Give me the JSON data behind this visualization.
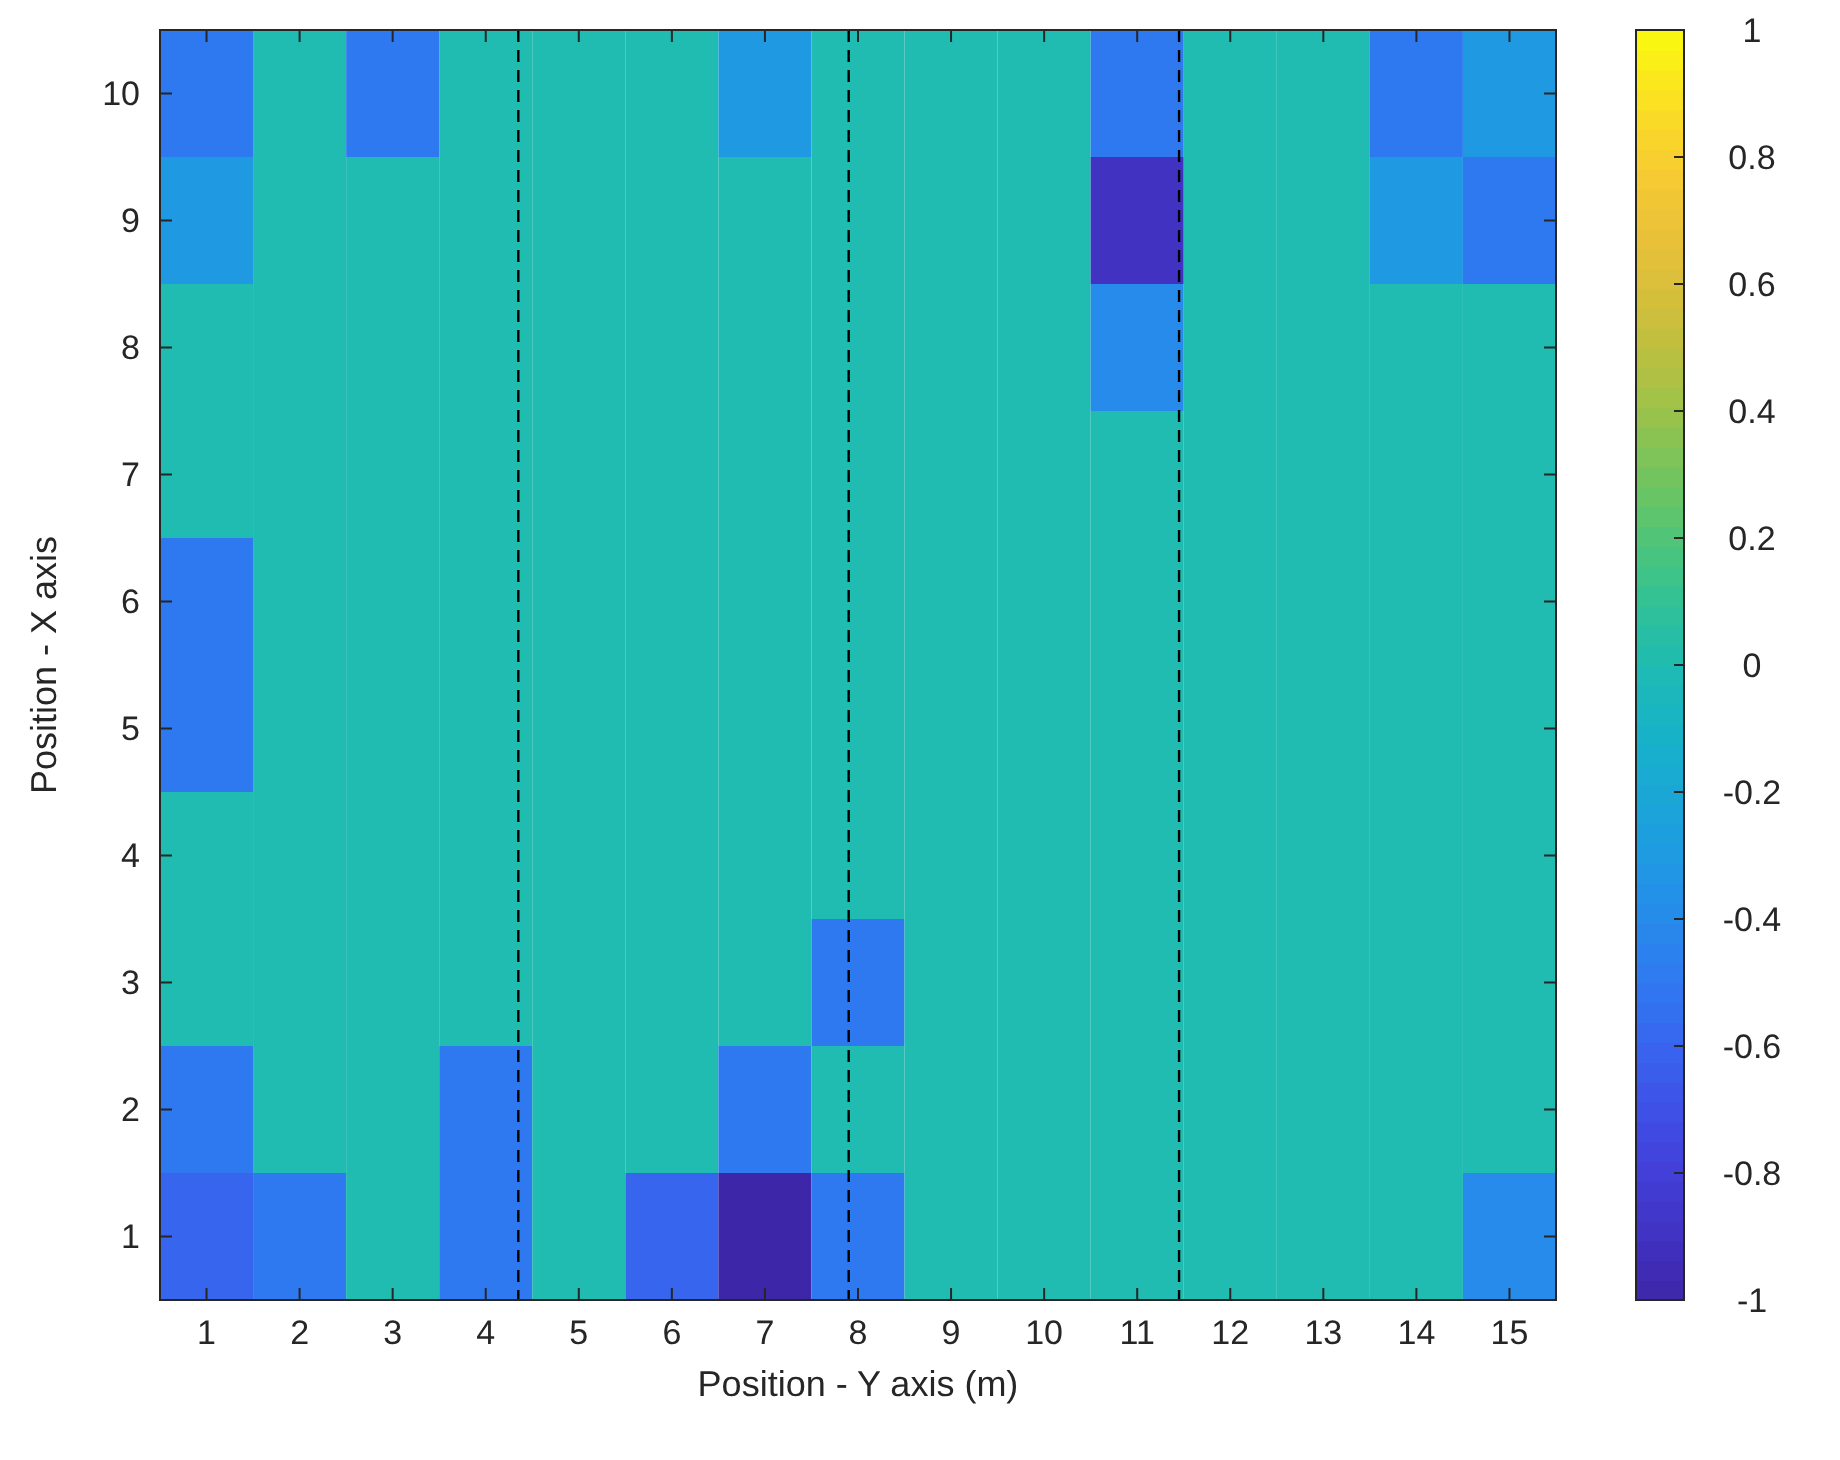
{
  "chart_data": {
    "type": "heatmap",
    "xlabel": "Position - Y axis (m)",
    "ylabel": "Position - X axis",
    "x": [
      1,
      2,
      3,
      4,
      5,
      6,
      7,
      8,
      9,
      10,
      11,
      12,
      13,
      14,
      15
    ],
    "y_categories": [
      10,
      9,
      8,
      7,
      6,
      5,
      4,
      3,
      2,
      1
    ],
    "xlim": [
      0.5,
      15.5
    ],
    "xticks": [
      1,
      2,
      3,
      4,
      5,
      6,
      7,
      8,
      9,
      10,
      11,
      12,
      13,
      14,
      15
    ],
    "cells": [
      [
        -0.5,
        0,
        -0.5,
        0,
        0,
        0,
        -0.3,
        0,
        0,
        0,
        -0.5,
        0,
        0,
        -0.5,
        -0.3
      ],
      [
        -0.3,
        0,
        0,
        0,
        0,
        0,
        0,
        0,
        0,
        0,
        -0.9,
        0,
        0,
        -0.3,
        -0.5
      ],
      [
        0,
        0,
        0,
        0,
        0,
        0,
        0,
        0,
        0,
        0,
        -0.4,
        0,
        0,
        0,
        0
      ],
      [
        0,
        0,
        0,
        0,
        0,
        0,
        0,
        0,
        0,
        0,
        0,
        0,
        0,
        0,
        0
      ],
      [
        -0.5,
        0,
        0,
        0,
        0,
        0,
        0,
        0,
        0,
        0,
        0,
        0,
        0,
        0,
        0
      ],
      [
        -0.5,
        0,
        0,
        0,
        0,
        0,
        0,
        0,
        0,
        0,
        0,
        0,
        0,
        0,
        0
      ],
      [
        0,
        0,
        0,
        0,
        0,
        0,
        0,
        0,
        0,
        0,
        0,
        0,
        0,
        0,
        0
      ],
      [
        0,
        0,
        0,
        0,
        0,
        0,
        0,
        -0.5,
        0,
        0,
        0,
        0,
        0,
        0,
        0
      ],
      [
        -0.5,
        0,
        0,
        -0.5,
        0,
        0,
        -0.5,
        0,
        0,
        0,
        0,
        0,
        0,
        0,
        0
      ],
      [
        -0.6,
        -0.5,
        0,
        -0.5,
        0,
        -0.6,
        -1,
        -0.5,
        0,
        0,
        0,
        0,
        0,
        0,
        -0.4
      ]
    ],
    "clim": [
      -1,
      1
    ],
    "cticks": [
      -1,
      -0.8,
      -0.6,
      -0.4,
      -0.2,
      0,
      0.2,
      0.4,
      0.6,
      0.8,
      1
    ],
    "ref_lines": [
      {
        "axis": "x",
        "value": 4.35,
        "line_style": "dashed",
        "color": "#000000"
      },
      {
        "axis": "x",
        "value": 7.9,
        "line_style": "dashed",
        "color": "#000000"
      },
      {
        "axis": "x",
        "value": 11.45,
        "line_style": "dashed",
        "color": "#000000"
      }
    ]
  }
}
